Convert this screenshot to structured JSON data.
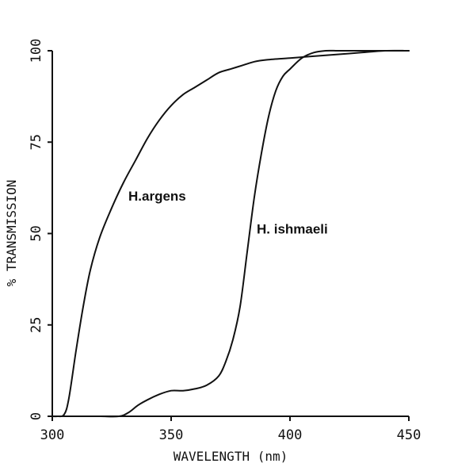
{
  "chart_data": {
    "type": "line",
    "xlabel": "WAVELENGTH (nm)",
    "ylabel": "% TRANSMISSION",
    "xlim": [
      300,
      450
    ],
    "ylim": [
      0,
      100
    ],
    "xticks": [
      {
        "value": 300,
        "label": "300"
      },
      {
        "value": 350,
        "label": "350"
      },
      {
        "value": 400,
        "label": "400"
      },
      {
        "value": 450,
        "label": "450"
      }
    ],
    "yticks": [
      {
        "value": 0,
        "label": "0"
      },
      {
        "value": 25,
        "label": "25"
      },
      {
        "value": 50,
        "label": "50"
      },
      {
        "value": 75,
        "label": "75"
      },
      {
        "value": 100,
        "label": "100"
      }
    ],
    "grid": false,
    "series": [
      {
        "name": "H.argens",
        "x": [
          300,
          302,
          305,
          307,
          310,
          313,
          316,
          320,
          325,
          330,
          335,
          340,
          345,
          350,
          355,
          360,
          365,
          370,
          375,
          380,
          385,
          390,
          400,
          410,
          420,
          430,
          440,
          450
        ],
        "y": [
          0,
          0,
          0.5,
          5,
          18,
          30,
          40,
          49,
          57,
          64,
          70,
          76,
          81,
          85,
          88,
          90,
          92,
          94,
          95,
          96,
          97,
          97.5,
          98,
          98.5,
          99,
          99.5,
          100,
          100
        ]
      },
      {
        "name": "H.ishmaeli",
        "x": [
          300,
          310,
          320,
          328,
          332,
          336,
          340,
          345,
          350,
          355,
          360,
          365,
          370,
          373,
          376,
          379,
          382,
          385,
          388,
          391,
          394,
          397,
          400,
          405,
          410,
          415,
          420,
          425,
          430,
          440,
          450
        ],
        "y": [
          0,
          0,
          0,
          0,
          1,
          3,
          4.5,
          6,
          7,
          7,
          7.5,
          8.5,
          11,
          15,
          21,
          30,
          45,
          60,
          72,
          82,
          89,
          93,
          95,
          98,
          99.5,
          100,
          100,
          100,
          100,
          100,
          100
        ]
      }
    ],
    "annotations": [
      {
        "text": "H.argens",
        "x": 332,
        "y": 59
      },
      {
        "text": "H. ishmaeli",
        "x": 386,
        "y": 50
      }
    ]
  }
}
